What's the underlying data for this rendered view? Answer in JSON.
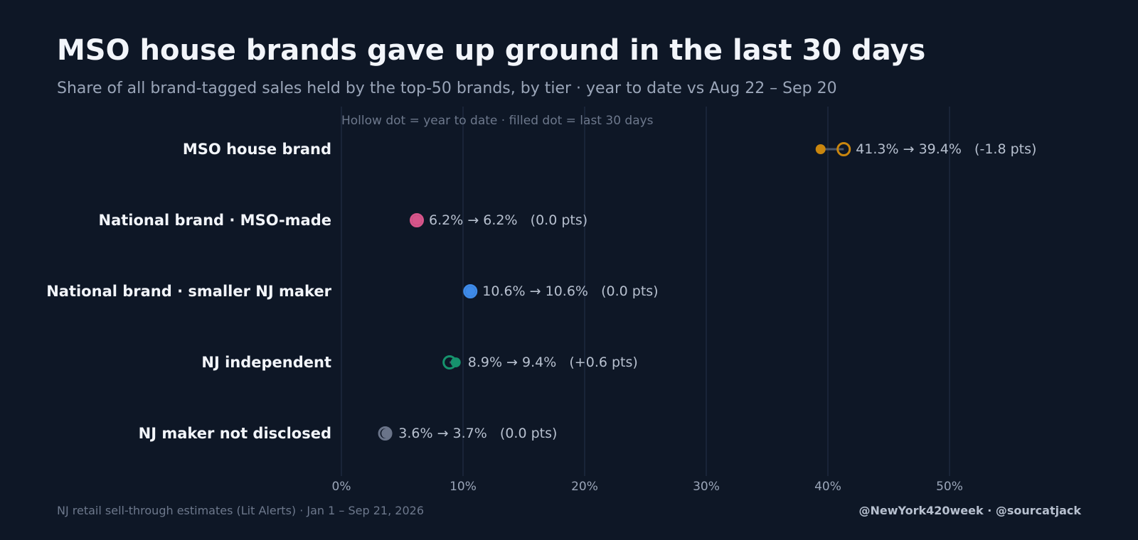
{
  "chart_data": {
    "type": "scatter",
    "title": "MSO house brands gave up ground in the last 30 days",
    "subtitle": "Share of all brand-tagged sales held by the top-50 brands, by tier · year to date vs Aug 22 – Sep 20",
    "legend_note": "Hollow dot = year to date · filled dot = last 30 days",
    "xlim": [
      0,
      60
    ],
    "x_ticks": [
      0,
      10,
      20,
      30,
      40,
      50
    ],
    "x_tick_labels": [
      "0%",
      "10%",
      "20%",
      "30%",
      "40%",
      "50%"
    ],
    "grid": true,
    "series": [
      {
        "name": "MSO house brand",
        "ytd": 41.3,
        "last30": 39.4,
        "label": "41.3% → 39.4%   (-1.8 pts)",
        "color": "#c9860e"
      },
      {
        "name": "National brand · MSO-made",
        "ytd": 6.2,
        "last30": 6.2,
        "label": "6.2% → 6.2%   (0.0 pts)",
        "color": "#d6558a"
      },
      {
        "name": "National brand · smaller NJ maker",
        "ytd": 10.6,
        "last30": 10.6,
        "label": "10.6% → 10.6%   (0.0 pts)",
        "color": "#3e8ae8"
      },
      {
        "name": "NJ independent",
        "ytd": 8.9,
        "last30": 9.4,
        "label": "8.9% → 9.4%   (+0.6 pts)",
        "color": "#16936d"
      },
      {
        "name": "NJ maker not disclosed",
        "ytd": 3.6,
        "last30": 3.7,
        "label": "3.6% → 3.7%   (0.0 pts)",
        "color": "#6a7489"
      }
    ]
  },
  "footer": {
    "source": "NJ retail sell-through estimates (Lit Alerts) · Jan 1 – Sep 21, 2026",
    "credits": "@NewYork420week  ·  @sourcatjack"
  }
}
